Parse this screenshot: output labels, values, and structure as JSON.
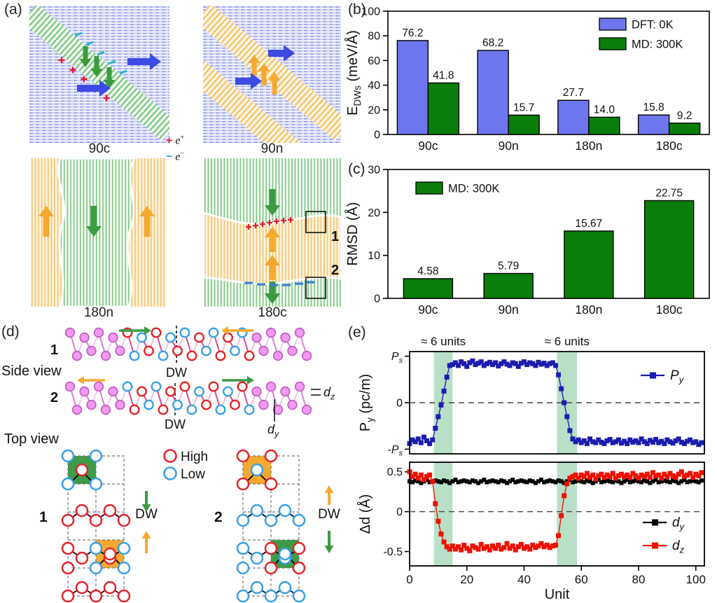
{
  "panel_labels": {
    "a": "(a)",
    "b": "(b)",
    "c": "(c)",
    "d": "(d)",
    "e": "(e)"
  },
  "panel_a": {
    "tiles": [
      {
        "name": "90c"
      },
      {
        "name": "90n"
      },
      {
        "name": "180n"
      },
      {
        "name": "180c"
      }
    ],
    "charge_legend": {
      "plus": "+",
      "e_plus_base": "e",
      "e_plus_sup": "+",
      "minus": "−",
      "e_minus_base": "e",
      "e_minus_sup": "−"
    },
    "box1": "1",
    "box2": "2"
  },
  "panel_d": {
    "side_view": "Side view",
    "top_view": "Top view",
    "row1": "1",
    "row2": "2",
    "dw1": "DW",
    "dw2": "DW",
    "lattice1": "1",
    "lattice2": "2",
    "dw3": "DW",
    "dw4": "DW",
    "legend_high": "High",
    "legend_low": "Low"
  },
  "colors": {
    "dft_blue": "#6e76ee",
    "md_green": "#0a7d0a",
    "py_navy": "#1c1cae",
    "dz_red": "#ee1100",
    "band_shade": "#b9e0c7",
    "arrow_blue": "#3d4ae3",
    "arrow_green": "#3a9b40",
    "arrow_orange": "#f5a930",
    "atom_pink": "#f29af2",
    "atom_red": "#e3242b",
    "atom_blue": "#3aa0e8",
    "plus_red": "#e8192c",
    "minus_cyan": "#29b6c8"
  },
  "chart_data": [
    {
      "id": "b",
      "type": "bar",
      "title": "",
      "categories": [
        "90c",
        "90n",
        "180n",
        "180c"
      ],
      "series": [
        {
          "name": "DFT: 0K",
          "color": "#6e76ee",
          "values": [
            76.2,
            68.2,
            27.7,
            15.8
          ],
          "labels": [
            "76.2",
            "68.2",
            "27.7",
            "15.8"
          ]
        },
        {
          "name": "MD: 300K",
          "color": "#0a7d0a",
          "values": [
            41.8,
            15.7,
            14.0,
            9.2
          ],
          "labels": [
            "41.8",
            "15.7",
            "14.0",
            "9.2"
          ]
        }
      ],
      "ylabel_rich": [
        [
          "",
          "E"
        ],
        [
          "sub",
          "DWs"
        ],
        [
          "",
          " (meV/Å)"
        ]
      ],
      "ylim": [
        0,
        100
      ],
      "yticks": [
        0,
        20,
        40,
        60,
        80,
        100
      ],
      "legend_position": "top-right",
      "grid": false
    },
    {
      "id": "c",
      "type": "bar",
      "title": "",
      "categories": [
        "90c",
        "90n",
        "180n",
        "180c"
      ],
      "series": [
        {
          "name": "MD: 300K",
          "color": "#0a7d0a",
          "values": [
            4.58,
            5.79,
            15.67,
            22.75
          ],
          "labels": [
            "4.58",
            "5.79",
            "15.67",
            "22.75"
          ]
        }
      ],
      "ylabel_rich": [
        [
          "",
          "RMSD (Å)"
        ]
      ],
      "ylim": [
        0,
        30
      ],
      "yticks": [
        0,
        10,
        20,
        30
      ],
      "legend_position": "top-left",
      "grid": false
    },
    {
      "id": "e",
      "type": "line",
      "xlabel": "Unit",
      "xlim": [
        0,
        103
      ],
      "xticks": [
        0,
        20,
        40,
        60,
        80,
        100
      ],
      "x_start": 0,
      "x_step": 1,
      "bands": [
        [
          8.5,
          15
        ],
        [
          51.5,
          58.5
        ]
      ],
      "annotations": [
        "≈ 6 units",
        "≈ 6 units"
      ],
      "subplots": [
        {
          "ylabel_rich": [
            [
              "",
              "P"
            ],
            [
              "sub",
              "y"
            ],
            [
              "",
              " (pc/m)"
            ]
          ],
          "ylim": [
            -1.1,
            1.1
          ],
          "zero_dash": 0,
          "yticks": [
            {
              "v": 1,
              "rich": [
                [
                  "i",
                  "P"
                ],
                [
                  "isub",
                  "s"
                ]
              ]
            },
            {
              "v": 0,
              "rich": [
                [
                  "",
                  "0"
                ]
              ]
            },
            {
              "v": -1,
              "rich": [
                [
                  "",
                  "-"
                ],
                [
                  "i",
                  "P"
                ],
                [
                  "isub",
                  "s"
                ]
              ]
            }
          ],
          "series": [
            {
              "legend_rich": [
                [
                  "i",
                  "P"
                ],
                [
                  "isub",
                  "y"
                ]
              ],
              "color": "#1c1cae",
              "marker": 7,
              "y": [
                -0.88,
                -0.8,
                -0.84,
                -0.78,
                -0.86,
                -0.74,
                -0.82,
                -0.88,
                -0.8,
                -0.55,
                -0.3,
                -0.05,
                0.25,
                0.55,
                0.8,
                0.82,
                0.86,
                0.8,
                0.88,
                0.84,
                0.78,
                0.86,
                0.9,
                0.82,
                0.85,
                0.88,
                0.8,
                0.84,
                0.87,
                0.82,
                0.86,
                0.79,
                0.84,
                0.88,
                0.83,
                0.8,
                0.86,
                0.84,
                0.78,
                0.85,
                0.88,
                0.82,
                0.86,
                0.84,
                0.8,
                0.87,
                0.83,
                0.85,
                0.8,
                0.84,
                0.86,
                0.8,
                0.6,
                0.3,
                0.0,
                -0.3,
                -0.6,
                -0.78,
                -0.84,
                -0.8,
                -0.86,
                -0.82,
                -0.88,
                -0.78,
                -0.84,
                -0.86,
                -0.8,
                -0.85,
                -0.88,
                -0.82,
                -0.79,
                -0.86,
                -0.84,
                -0.8,
                -0.87,
                -0.83,
                -0.88,
                -0.8,
                -0.85,
                -0.82,
                -0.86,
                -0.78,
                -0.84,
                -0.88,
                -0.81,
                -0.85,
                -0.79,
                -0.86,
                -0.83,
                -0.88,
                -0.8,
                -0.84,
                -0.87,
                -0.82,
                -0.78,
                -0.85,
                -0.88,
                -0.83,
                -0.8,
                -0.86,
                -0.84,
                -0.9,
                -0.86
              ]
            }
          ]
        },
        {
          "ylabel_rich": [
            [
              "",
              "Δd (Å)"
            ]
          ],
          "ylim": [
            -0.68,
            0.62
          ],
          "zero_dash": 0,
          "yticks": [
            {
              "v": 0.5,
              "rich": [
                [
                  "",
                  "0.5"
                ]
              ]
            },
            {
              "v": 0,
              "rich": [
                [
                  "",
                  "0"
                ]
              ]
            },
            {
              "v": -0.5,
              "rich": [
                [
                  "",
                  "-0.5"
                ]
              ]
            }
          ],
          "series": [
            {
              "legend_rich": [
                [
                  "i",
                  "d"
                ],
                [
                  "isub",
                  "y"
                ]
              ],
              "color": "#000000",
              "marker": 6,
              "y": [
                0.38,
                0.37,
                0.39,
                0.38,
                0.36,
                0.38,
                0.4,
                0.37,
                0.38,
                0.39,
                0.38,
                0.37,
                0.39,
                0.38,
                0.36,
                0.38,
                0.4,
                0.37,
                0.38,
                0.39,
                0.38,
                0.37,
                0.39,
                0.38,
                0.36,
                0.38,
                0.4,
                0.37,
                0.38,
                0.39,
                0.38,
                0.37,
                0.39,
                0.38,
                0.36,
                0.38,
                0.4,
                0.37,
                0.38,
                0.39,
                0.38,
                0.37,
                0.39,
                0.38,
                0.36,
                0.38,
                0.4,
                0.37,
                0.38,
                0.39,
                0.38,
                0.37,
                0.39,
                0.38,
                0.36,
                0.38,
                0.4,
                0.37,
                0.38,
                0.39,
                0.38,
                0.37,
                0.39,
                0.38,
                0.36,
                0.38,
                0.4,
                0.37,
                0.38,
                0.39,
                0.38,
                0.37,
                0.39,
                0.38,
                0.36,
                0.38,
                0.4,
                0.37,
                0.38,
                0.39,
                0.38,
                0.37,
                0.39,
                0.38,
                0.36,
                0.38,
                0.4,
                0.37,
                0.38,
                0.39,
                0.38,
                0.37,
                0.39,
                0.38,
                0.36,
                0.38,
                0.4,
                0.37,
                0.38,
                0.39,
                0.38,
                0.37,
                0.39
              ]
            },
            {
              "legend_rich": [
                [
                  "i",
                  "d"
                ],
                [
                  "isub",
                  "z"
                ]
              ],
              "color": "#ee1100",
              "marker": 7,
              "y": [
                0.5,
                0.44,
                0.47,
                0.42,
                0.46,
                0.4,
                0.44,
                0.46,
                0.38,
                0.1,
                -0.12,
                -0.28,
                -0.38,
                -0.44,
                -0.47,
                -0.43,
                -0.47,
                -0.44,
                -0.48,
                -0.42,
                -0.46,
                -0.49,
                -0.43,
                -0.45,
                -0.47,
                -0.41,
                -0.46,
                -0.44,
                -0.48,
                -0.43,
                -0.46,
                -0.42,
                -0.47,
                -0.45,
                -0.4,
                -0.46,
                -0.43,
                -0.48,
                -0.44,
                -0.41,
                -0.46,
                -0.44,
                -0.47,
                -0.42,
                -0.45,
                -0.43,
                -0.4,
                -0.44,
                -0.42,
                -0.45,
                -0.43,
                -0.42,
                -0.3,
                -0.05,
                0.2,
                0.35,
                0.42,
                0.44,
                0.46,
                0.42,
                0.46,
                0.44,
                0.48,
                0.43,
                0.46,
                0.41,
                0.45,
                0.47,
                0.43,
                0.46,
                0.44,
                0.48,
                0.42,
                0.45,
                0.47,
                0.44,
                0.46,
                0.43,
                0.48,
                0.45,
                0.42,
                0.46,
                0.44,
                0.47,
                0.43,
                0.49,
                0.45,
                0.46,
                0.42,
                0.47,
                0.44,
                0.48,
                0.45,
                0.43,
                0.47,
                0.5,
                0.44,
                0.46,
                0.48,
                0.43,
                0.47,
                0.45,
                0.49
              ]
            }
          ]
        }
      ]
    }
  ]
}
